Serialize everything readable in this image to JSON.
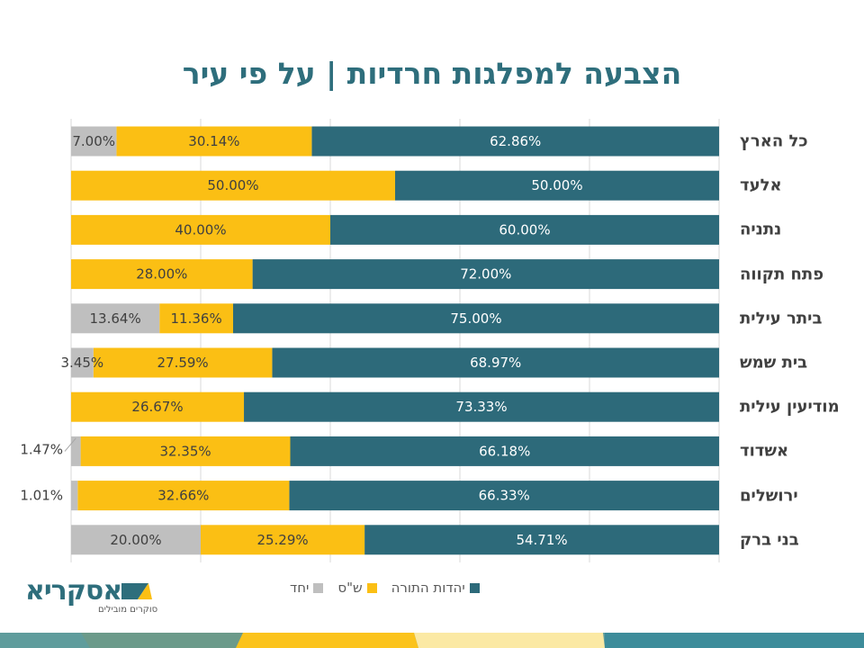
{
  "title": "הצבעה למפלגות חרדיות | על פי עיר",
  "colors": {
    "utj": "#2d6a7a",
    "shas": "#fbbf14",
    "yachad": "#bfbfbf",
    "title": "#2e6e7c"
  },
  "logo": {
    "name": "אסקריא",
    "tagline": "סוקרים מובילים"
  },
  "chart_data": {
    "type": "bar",
    "orientation": "horizontal",
    "stacked": "100%",
    "direction": "right-to-left",
    "categories": [
      "כל הארץ",
      "אלעד",
      "נתניה",
      "פתח תקווה",
      "ביתר עילית",
      "בית שמש",
      "מודיעין עילית",
      "אשדוד",
      "ירושלים",
      "בני ברק"
    ],
    "series": [
      {
        "name": "יהדות התורה",
        "values": [
          62.86,
          50.0,
          60.0,
          72.0,
          75.0,
          68.97,
          73.33,
          66.18,
          66.33,
          54.71
        ]
      },
      {
        "name": "ש\"ס",
        "values": [
          30.14,
          50.0,
          40.0,
          28.0,
          11.36,
          27.59,
          26.67,
          32.35,
          32.66,
          25.29
        ]
      },
      {
        "name": "יחד",
        "values": [
          7.0,
          null,
          null,
          null,
          13.64,
          3.45,
          null,
          1.47,
          1.01,
          20.0
        ]
      }
    ],
    "xlim": [
      0,
      100
    ],
    "grid": true,
    "legend": "bottom"
  }
}
